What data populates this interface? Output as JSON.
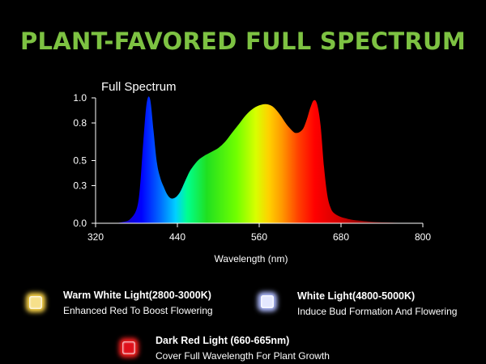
{
  "headline": "PLANT-FAVORED FULL SPECTRUM",
  "colors": {
    "headline": "#7dc242",
    "background": "#000000",
    "axis": "#ffffff"
  },
  "chart_data": {
    "type": "area",
    "title": "Full Spectrum",
    "xlabel": "Wavelength (nm)",
    "ylabel": "",
    "xlim": [
      320,
      800
    ],
    "ylim": [
      0.0,
      1.0
    ],
    "xticks": [
      320,
      440,
      560,
      680,
      800
    ],
    "yticks": [
      0.0,
      0.3,
      0.5,
      0.8,
      1.0
    ],
    "ytick_labels": [
      "0.0",
      "0.3",
      "0.5",
      "0.8",
      "1.0"
    ],
    "grid": false,
    "fill": "visible-spectrum gradient",
    "x": [
      350,
      360,
      370,
      380,
      385,
      390,
      395,
      400,
      405,
      410,
      415,
      420,
      425,
      430,
      435,
      440,
      445,
      450,
      455,
      460,
      470,
      480,
      490,
      500,
      510,
      520,
      530,
      540,
      550,
      560,
      570,
      580,
      590,
      600,
      610,
      615,
      620,
      625,
      630,
      635,
      640,
      645,
      650,
      655,
      660,
      665,
      670,
      680,
      690,
      700,
      720,
      740,
      760,
      780,
      800
    ],
    "y": [
      0.0,
      0.01,
      0.03,
      0.11,
      0.28,
      0.65,
      0.96,
      0.99,
      0.74,
      0.48,
      0.36,
      0.29,
      0.23,
      0.2,
      0.2,
      0.22,
      0.26,
      0.32,
      0.38,
      0.43,
      0.5,
      0.54,
      0.57,
      0.6,
      0.65,
      0.72,
      0.79,
      0.86,
      0.91,
      0.94,
      0.95,
      0.93,
      0.87,
      0.79,
      0.73,
      0.72,
      0.73,
      0.76,
      0.83,
      0.92,
      0.98,
      0.95,
      0.78,
      0.45,
      0.22,
      0.12,
      0.08,
      0.05,
      0.035,
      0.025,
      0.015,
      0.008,
      0.004,
      0.001,
      0.0
    ]
  },
  "legend": [
    {
      "title": "Warm White Light(2800-3000K)",
      "desc": "Enhanced Red To Boost Flowering",
      "color": "#f6e08a",
      "glow": "#ffd84a",
      "icon": "warm-white-led-icon"
    },
    {
      "title": "White Light(4800-5000K)",
      "desc": "Induce Bud Formation And Flowering",
      "color": "#e4e8ff",
      "glow": "#b0bcff",
      "icon": "white-led-icon"
    },
    {
      "title": "Dark Red Light (660-665nm)",
      "desc": "Cover Full Wavelength For Plant Growth",
      "color": "#e0101a",
      "glow": "#ff2020",
      "icon": "dark-red-led-icon"
    }
  ]
}
